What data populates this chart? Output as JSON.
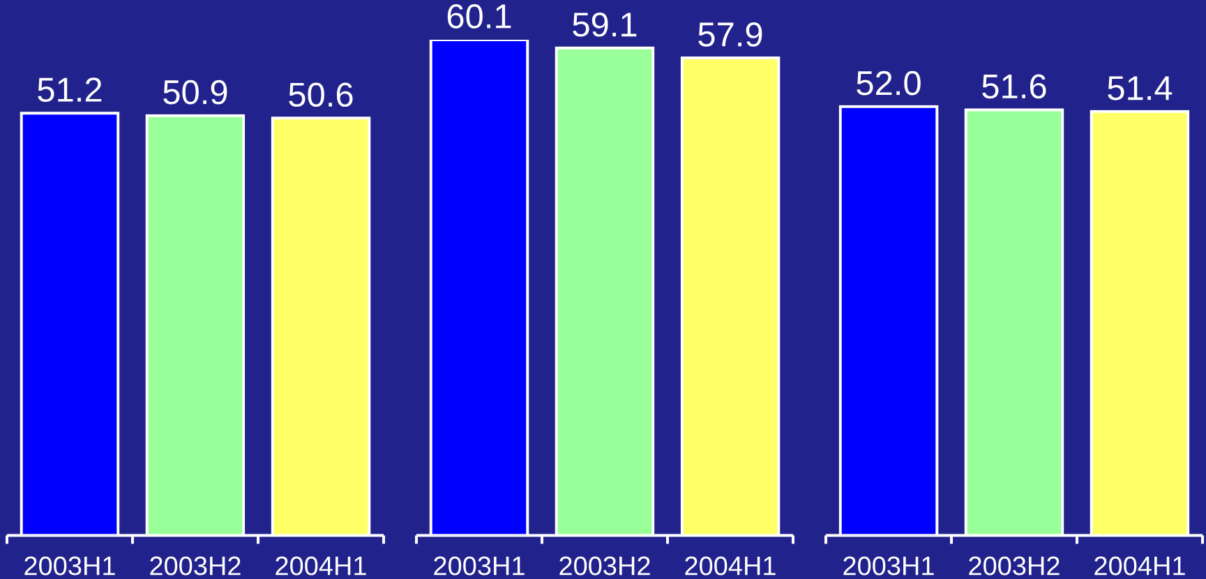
{
  "chart_data": [
    {
      "type": "bar",
      "categories": [
        "2003H1",
        "2003H2",
        "2004H1"
      ],
      "values": [
        51.2,
        50.9,
        50.6
      ],
      "colors": [
        "#0000ff",
        "#99ff99",
        "#ffff66"
      ],
      "value_labels": [
        "51.2",
        "50.9",
        "50.6"
      ],
      "tick_labels": "x"
    },
    {
      "type": "bar",
      "categories": [
        "2003H1",
        "2003H2",
        "2004H1"
      ],
      "values": [
        60.1,
        59.1,
        57.9
      ],
      "colors": [
        "#0000ff",
        "#99ff99",
        "#ffff66"
      ],
      "value_labels": [
        "60.1",
        "59.1",
        "57.9"
      ],
      "tick_labels": "x"
    },
    {
      "type": "bar",
      "categories": [
        "2003H1",
        "2003H2",
        "2004H1"
      ],
      "values": [
        52.0,
        51.6,
        51.4
      ],
      "colors": [
        "#0000ff",
        "#99ff99",
        "#ffff66"
      ],
      "value_labels": [
        "52.0",
        "51.6",
        "51.4"
      ],
      "tick_labels": "x"
    }
  ]
}
